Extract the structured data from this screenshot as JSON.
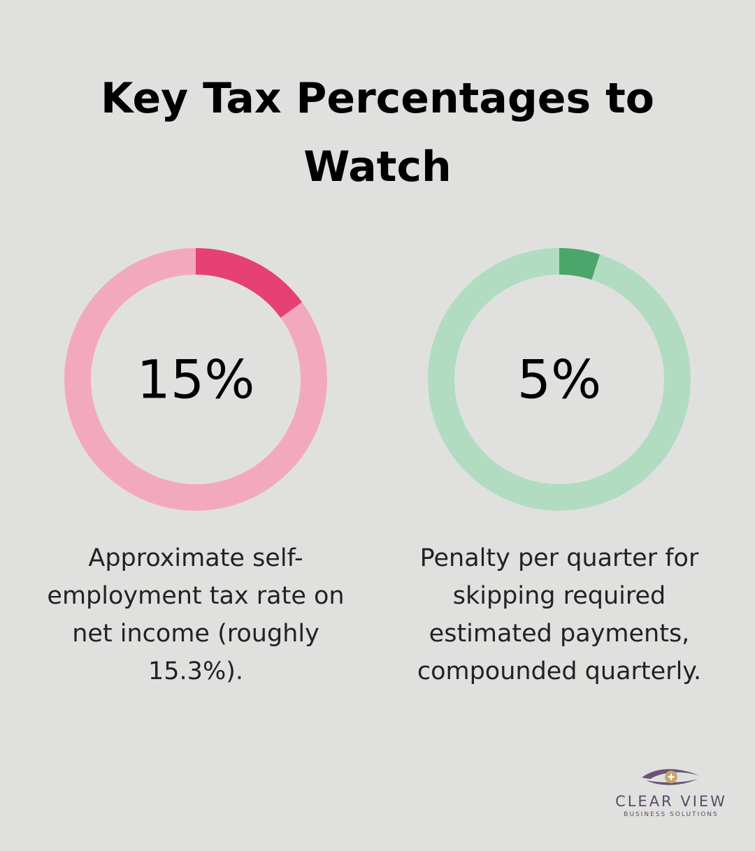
{
  "title": "Key Tax Percentages to Watch",
  "chart_data": [
    {
      "type": "donut",
      "values": [
        15
      ],
      "value_labels": [
        "15%"
      ],
      "color": "#e64174",
      "track_color": "#f2a9c0",
      "caption": "Approximate self-employment tax rate on net income (roughly 15.3%)."
    },
    {
      "type": "donut",
      "values": [
        5
      ],
      "value_labels": [
        "5%"
      ],
      "color": "#4aa66a",
      "track_color": "#b1dcc1",
      "caption": "Penalty per quarter for skipping required estimated payments, compounded quarterly."
    }
  ],
  "logo": {
    "name": "CLEAR VIEW",
    "tagline": "BUSINESS SOLUTIONS"
  }
}
